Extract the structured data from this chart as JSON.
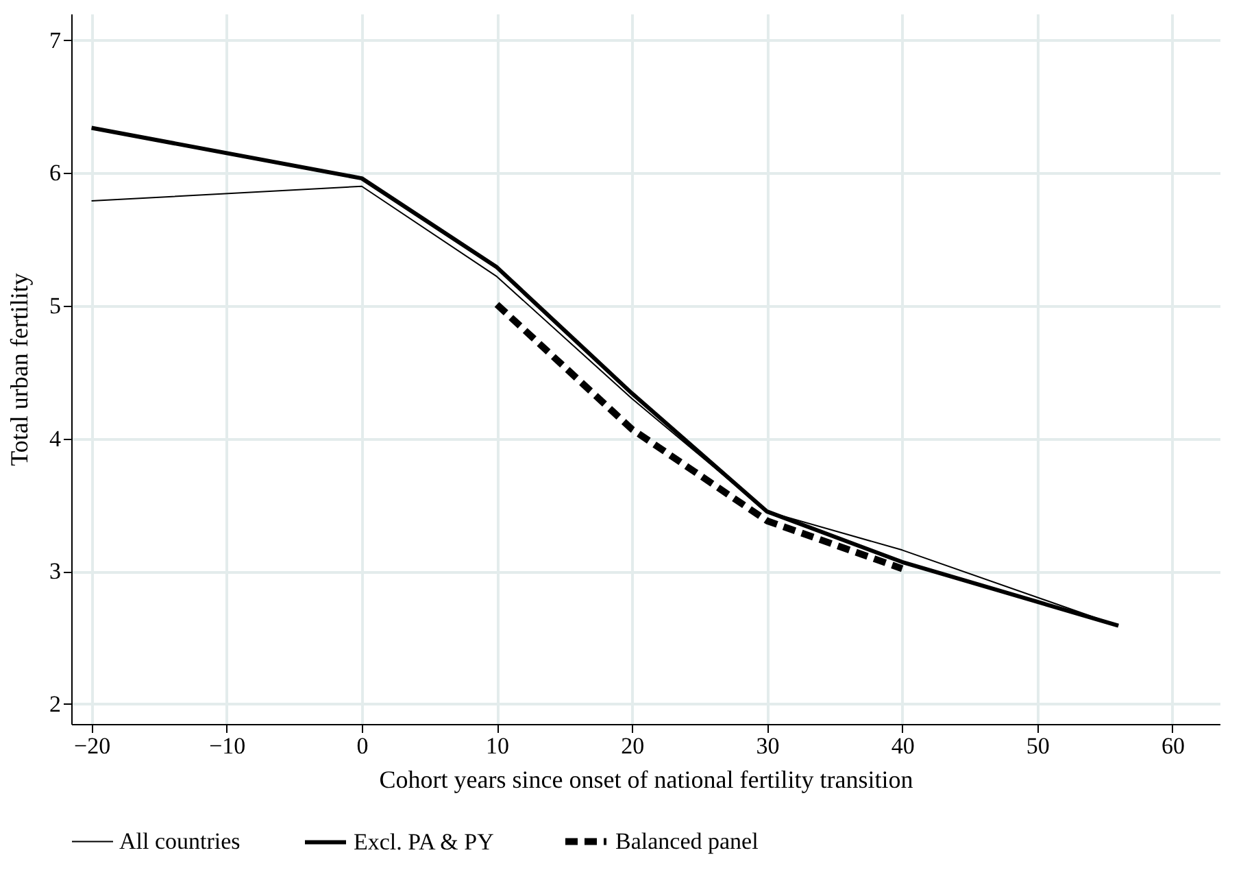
{
  "chart_data": {
    "type": "line",
    "xlabel": "Cohort years since onset of national fertility transition",
    "ylabel": "Total urban fertility",
    "xlim": [
      -21.5,
      63.5
    ],
    "ylim": [
      1.85,
      7.2
    ],
    "xticks": [
      {
        "value": -20,
        "label": "−20"
      },
      {
        "value": -10,
        "label": "−10"
      },
      0,
      10,
      20,
      30,
      40,
      50,
      60
    ],
    "yticks": [
      2,
      3,
      4,
      5,
      6,
      7
    ],
    "grid": true,
    "legend": "bottom",
    "series": [
      {
        "name": "All countries",
        "color": "#000000",
        "line_style": "solid",
        "x": [
          -20,
          0,
          10,
          20,
          30,
          40,
          56
        ],
        "values": [
          5.79,
          5.9,
          5.22,
          4.3,
          3.45,
          3.16,
          2.59
        ]
      },
      {
        "name": "Excl. PA & PY",
        "color": "#000000",
        "line_style": "solid",
        "x": [
          -20,
          0,
          10,
          20,
          30,
          40,
          56
        ],
        "values": [
          6.34,
          5.96,
          5.29,
          4.34,
          3.45,
          3.07,
          2.59
        ]
      },
      {
        "name": "Balanced panel",
        "color": "#000000",
        "line_style": "dashed",
        "x": [
          10,
          20,
          30,
          40
        ],
        "values": [
          5.01,
          4.07,
          3.38,
          3.02
        ]
      }
    ]
  }
}
